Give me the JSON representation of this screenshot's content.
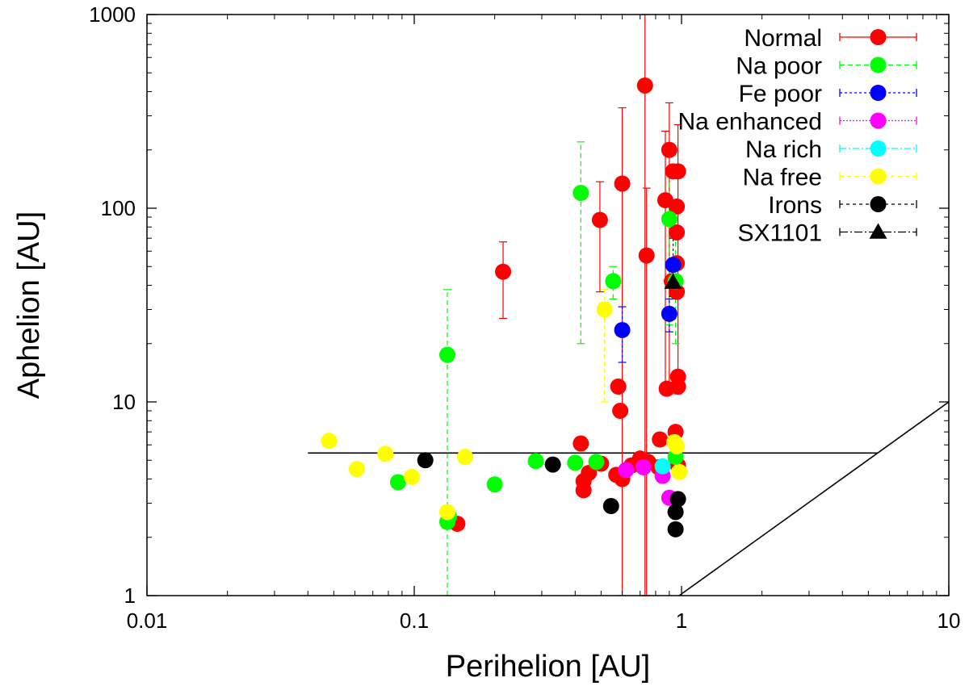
{
  "chart_data": {
    "type": "scatter",
    "xscale": "log",
    "yscale": "log",
    "xlabel": "Perihelion [AU]",
    "ylabel": "Aphelion [AU]",
    "xlim": [
      0.01,
      10
    ],
    "ylim": [
      1,
      1000
    ],
    "xticks": [
      {
        "value": 0.01,
        "label": "0.01"
      },
      {
        "value": 0.1,
        "label": "0.1"
      },
      {
        "value": 1,
        "label": "1"
      },
      {
        "value": 10,
        "label": "10"
      }
    ],
    "yticks": [
      {
        "value": 1,
        "label": "1"
      },
      {
        "value": 10,
        "label": "10"
      },
      {
        "value": 100,
        "label": "100"
      },
      {
        "value": 1000,
        "label": "1000"
      }
    ],
    "legend_position": "top-right",
    "reference_lines": [
      {
        "name": "jupiter-line",
        "x": [
          0.04,
          5.4
        ],
        "y": [
          5.45,
          5.45
        ],
        "color": "#000000"
      },
      {
        "name": "diagonal-line",
        "x": [
          0.98,
          10
        ],
        "y": [
          1,
          10
        ],
        "color": "#000000"
      }
    ],
    "series": [
      {
        "name": "Normal",
        "color": "#ff0000",
        "marker": "circle",
        "dash": "",
        "points": [
          {
            "x": 0.215,
            "y": 47,
            "ylo": 27,
            "yhi": 67
          },
          {
            "x": 0.495,
            "y": 87,
            "ylo": 37,
            "yhi": 137
          },
          {
            "x": 0.6,
            "y": 134,
            "ylo": 1,
            "yhi": 330
          },
          {
            "x": 0.73,
            "y": 430,
            "ylo": 1,
            "yhi": 1000
          },
          {
            "x": 0.74,
            "y": 57,
            "ylo": 1,
            "yhi": 127
          },
          {
            "x": 0.58,
            "y": 12
          },
          {
            "x": 0.59,
            "y": 9
          },
          {
            "x": 0.87,
            "y": 110,
            "ylo": 11,
            "yhi": 250
          },
          {
            "x": 0.9,
            "y": 200,
            "ylo": 11,
            "yhi": 350
          },
          {
            "x": 0.93,
            "y": 155
          },
          {
            "x": 0.97,
            "y": 155,
            "ylo": 11,
            "yhi": 270
          },
          {
            "x": 0.96,
            "y": 102
          },
          {
            "x": 0.96,
            "y": 75
          },
          {
            "x": 0.96,
            "y": 52
          },
          {
            "x": 0.92,
            "y": 42
          },
          {
            "x": 0.96,
            "y": 37
          },
          {
            "x": 0.88,
            "y": 11.7
          },
          {
            "x": 0.97,
            "y": 13.5
          },
          {
            "x": 0.97,
            "y": 12
          },
          {
            "x": 0.95,
            "y": 7
          },
          {
            "x": 0.83,
            "y": 6.4
          },
          {
            "x": 0.42,
            "y": 6.1
          },
          {
            "x": 0.45,
            "y": 4.3
          },
          {
            "x": 0.43,
            "y": 3.9
          },
          {
            "x": 0.43,
            "y": 3.5
          },
          {
            "x": 0.5,
            "y": 4.8
          },
          {
            "x": 0.57,
            "y": 4.2
          },
          {
            "x": 0.6,
            "y": 4.0
          },
          {
            "x": 0.65,
            "y": 4.7
          },
          {
            "x": 0.7,
            "y": 5.1
          },
          {
            "x": 0.75,
            "y": 4.9
          },
          {
            "x": 0.82,
            "y": 4.6
          },
          {
            "x": 0.97,
            "y": 4.7
          },
          {
            "x": 0.145,
            "y": 2.35
          }
        ]
      },
      {
        "name": "Na poor",
        "color": "#00ff00",
        "marker": "circle",
        "dash": "6,4",
        "points": [
          {
            "x": 0.42,
            "y": 120,
            "ylo": 20,
            "yhi": 220
          },
          {
            "x": 0.555,
            "y": 42,
            "ylo": 34,
            "yhi": 50
          },
          {
            "x": 0.133,
            "y": 17.5,
            "ylo": 1,
            "yhi": 38
          },
          {
            "x": 0.9,
            "y": 88,
            "ylo": 25,
            "yhi": 150
          },
          {
            "x": 0.95,
            "y": 42,
            "ylo": 20,
            "yhi": 70
          },
          {
            "x": 0.285,
            "y": 4.95
          },
          {
            "x": 0.4,
            "y": 4.85
          },
          {
            "x": 0.48,
            "y": 4.9
          },
          {
            "x": 0.2,
            "y": 3.75
          },
          {
            "x": 0.087,
            "y": 3.85
          },
          {
            "x": 0.135,
            "y": 2.55
          },
          {
            "x": 0.133,
            "y": 2.4
          },
          {
            "x": 0.95,
            "y": 5.2
          }
        ]
      },
      {
        "name": "Fe poor",
        "color": "#0000ff",
        "marker": "circle",
        "dash": "3,3",
        "points": [
          {
            "x": 0.6,
            "y": 23.5,
            "ylo": 16,
            "yhi": 31
          },
          {
            "x": 0.93,
            "y": 51,
            "ylo": 38,
            "yhi": 70
          },
          {
            "x": 0.9,
            "y": 28.5,
            "ylo": 23,
            "yhi": 34
          }
        ]
      },
      {
        "name": "Na enhanced",
        "color": "#ff00ff",
        "marker": "circle",
        "dash": "2,2",
        "points": [
          {
            "x": 0.62,
            "y": 4.45
          },
          {
            "x": 0.72,
            "y": 4.6
          },
          {
            "x": 0.85,
            "y": 4.15
          },
          {
            "x": 0.9,
            "y": 3.2
          }
        ]
      },
      {
        "name": "Na rich",
        "color": "#00ffff",
        "marker": "circle",
        "dash": "8,3,2,3",
        "points": [
          {
            "x": 0.85,
            "y": 4.65
          }
        ]
      },
      {
        "name": "Na free",
        "color": "#ffff00",
        "marker": "circle",
        "dash": "5,4",
        "points": [
          {
            "x": 0.048,
            "y": 6.3
          },
          {
            "x": 0.061,
            "y": 4.5
          },
          {
            "x": 0.078,
            "y": 5.4
          },
          {
            "x": 0.098,
            "y": 4.1
          },
          {
            "x": 0.155,
            "y": 5.2
          },
          {
            "x": 0.133,
            "y": 2.7
          },
          {
            "x": 0.515,
            "y": 30,
            "ylo": 10,
            "yhi": 38
          },
          {
            "x": 0.94,
            "y": 6.2
          },
          {
            "x": 0.96,
            "y": 5.9
          },
          {
            "x": 0.98,
            "y": 4.35
          }
        ]
      },
      {
        "name": "Irons",
        "color": "#000000",
        "marker": "circle",
        "dash": "4,4",
        "points": [
          {
            "x": 0.11,
            "y": 5.0
          },
          {
            "x": 0.33,
            "y": 4.75
          },
          {
            "x": 0.545,
            "y": 2.9
          },
          {
            "x": 0.97,
            "y": 3.15
          },
          {
            "x": 0.95,
            "y": 2.7
          },
          {
            "x": 0.95,
            "y": 2.2
          }
        ]
      },
      {
        "name": "SX1101",
        "color": "#000000",
        "marker": "triangle",
        "dash": "10,3,2,3",
        "points": [
          {
            "x": 0.93,
            "y": 41.5,
            "ylo": 35,
            "yhi": 48
          }
        ]
      }
    ]
  }
}
